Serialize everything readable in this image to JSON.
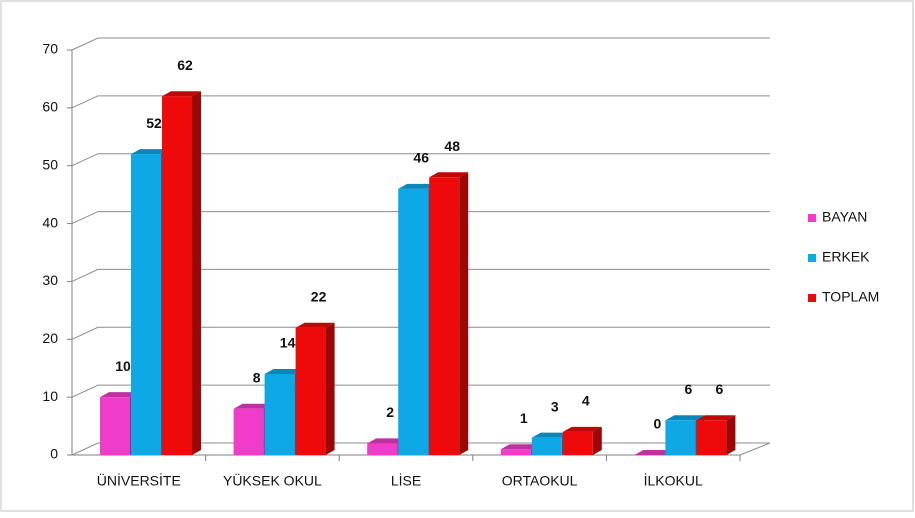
{
  "chart_data": {
    "type": "bar3d",
    "categories": [
      "ÜNİVERSİTE",
      "YÜKSEK OKUL",
      "LİSE",
      "ORTAOKUL",
      "İLKOKUL"
    ],
    "series": [
      {
        "name": "BAYAN",
        "color": "#f03cc8",
        "values": [
          10,
          8,
          2,
          1,
          0
        ]
      },
      {
        "name": "ERKEK",
        "color": "#0ea8e6",
        "values": [
          52,
          14,
          46,
          3,
          6
        ]
      },
      {
        "name": "TOPLAM",
        "color": "#ee0a0a",
        "values": [
          62,
          22,
          48,
          4,
          6
        ]
      }
    ],
    "ylim": [
      0,
      70
    ],
    "yticks": [
      0,
      10,
      20,
      30,
      40,
      50,
      60,
      70
    ],
    "grid": true,
    "legend": "right"
  }
}
